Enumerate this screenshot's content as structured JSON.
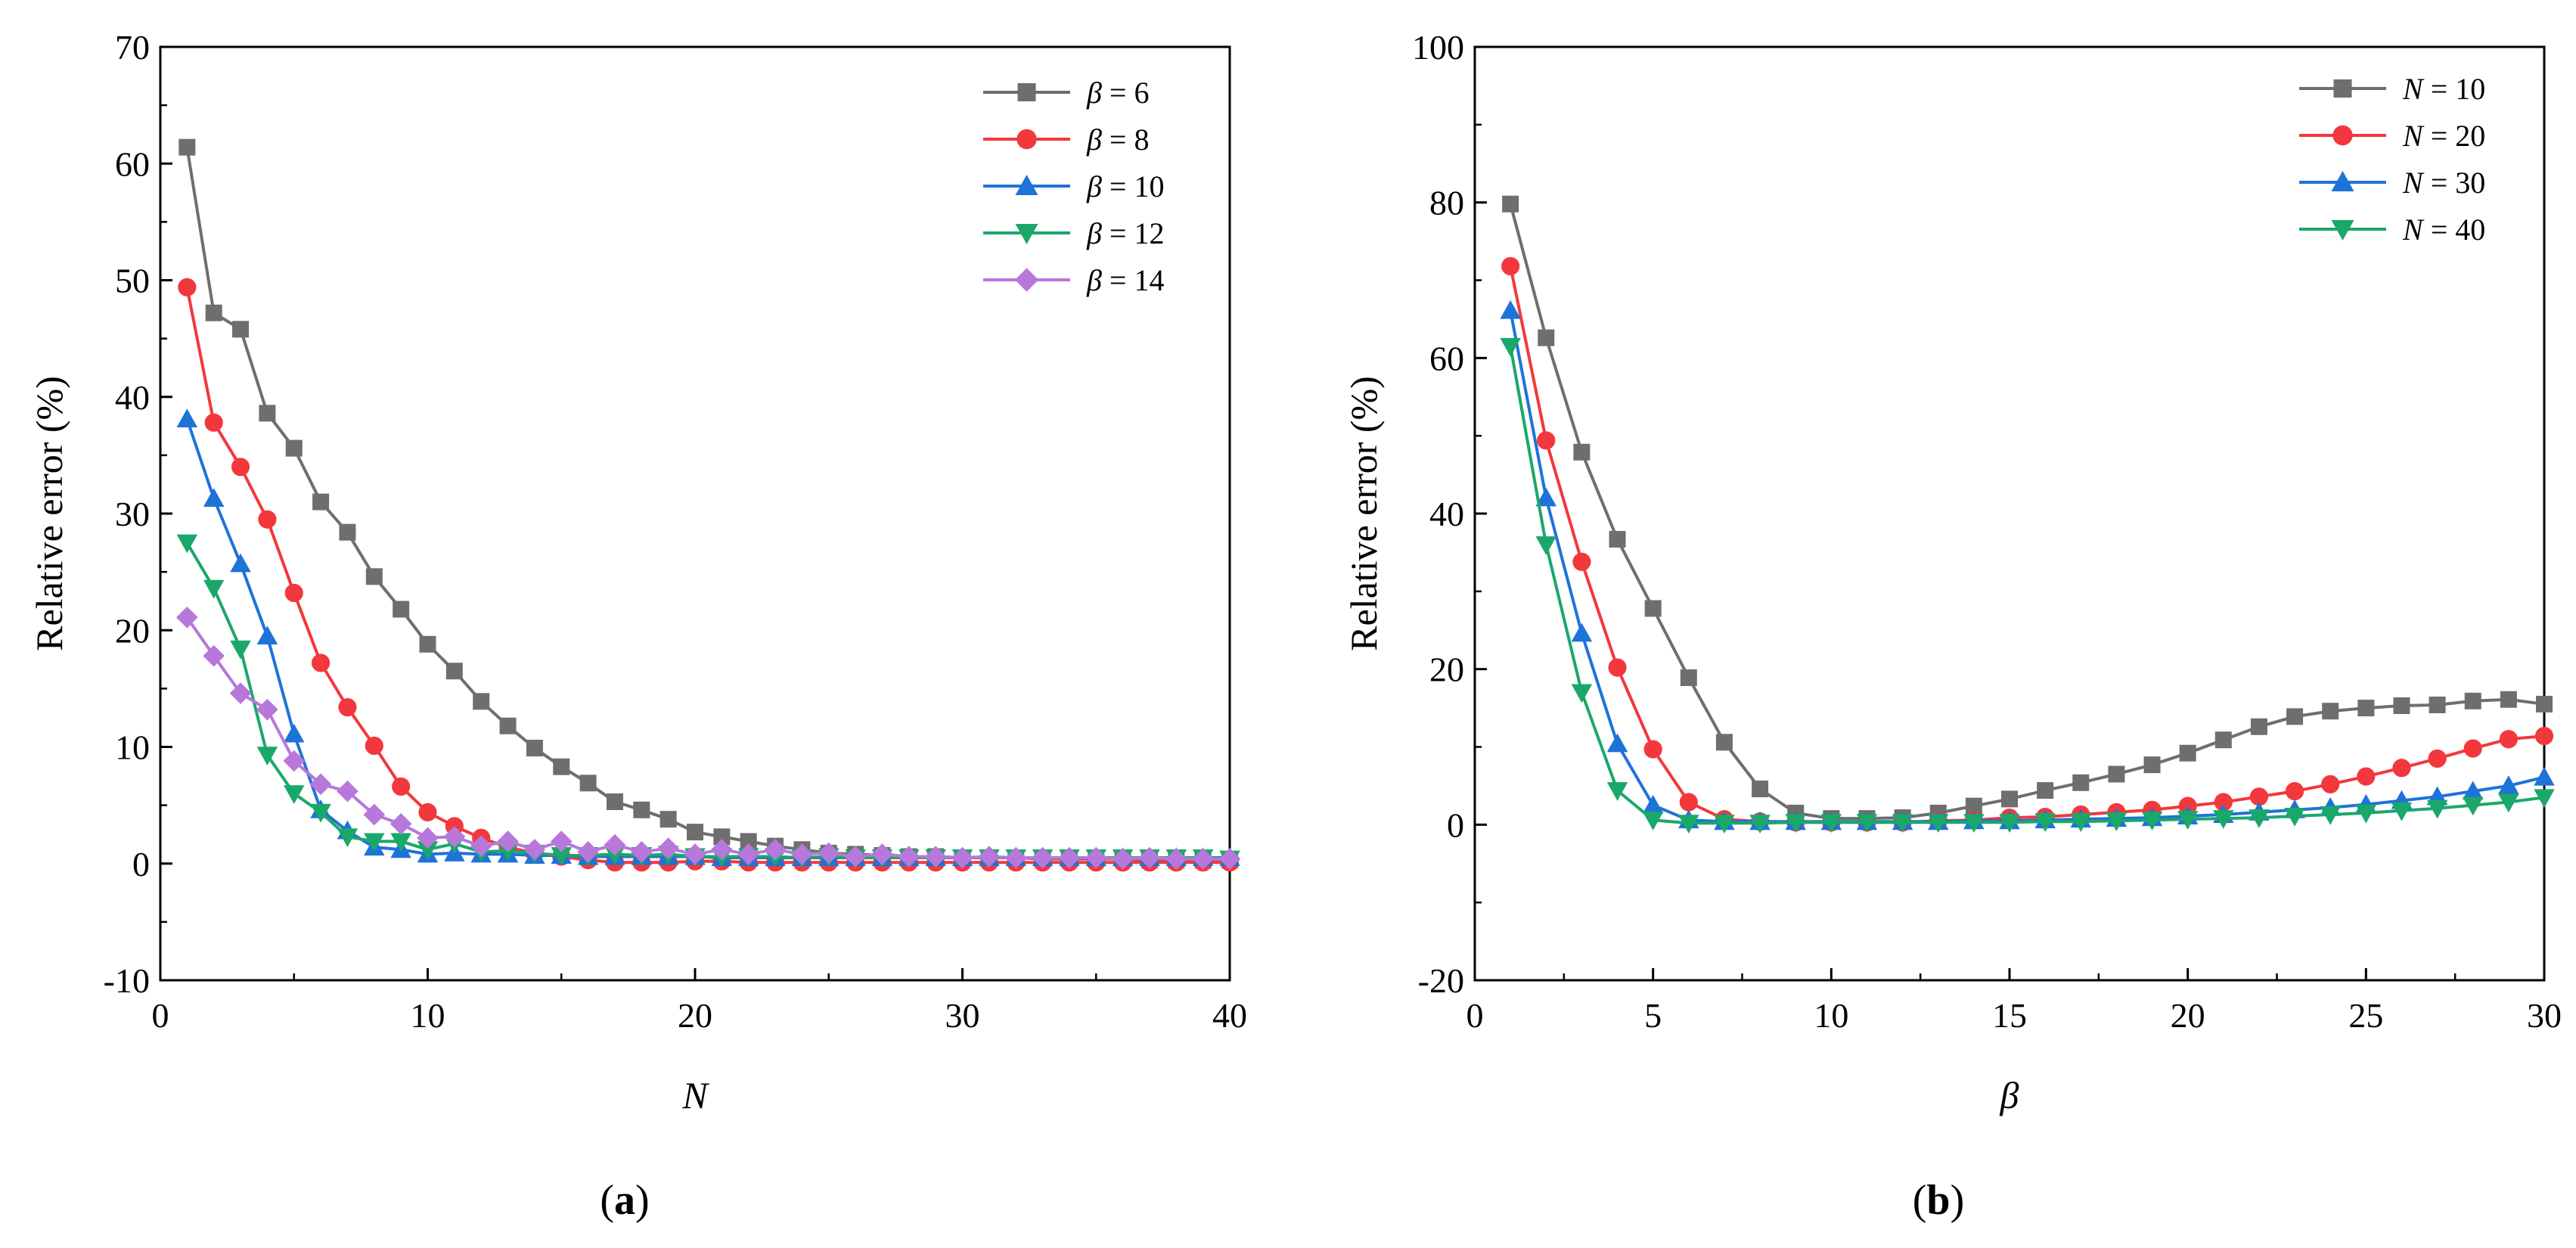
{
  "chart_data": [
    {
      "type": "line",
      "panel": "a",
      "label_open": "(",
      "label_letter": "a",
      "label_close": ")",
      "xlabel": "N",
      "ylabel": "Relative error (%)",
      "xlim": [
        0,
        40
      ],
      "ylim": [
        -10,
        70
      ],
      "xticks": [
        0,
        10,
        20,
        30,
        40
      ],
      "yticks": [
        -10,
        0,
        10,
        20,
        30,
        40,
        50,
        60,
        70
      ],
      "x": [
        1,
        2,
        3,
        4,
        5,
        6,
        7,
        8,
        9,
        10,
        11,
        12,
        13,
        14,
        15,
        16,
        17,
        18,
        19,
        20,
        21,
        22,
        23,
        24,
        25,
        26,
        27,
        28,
        29,
        30,
        31,
        32,
        33,
        34,
        35,
        36,
        37,
        38,
        39,
        40
      ],
      "legend_position": "top-right",
      "series": [
        {
          "name": "β = 6",
          "var": "β",
          "eq": " = ",
          "num": "6",
          "marker": "square",
          "color": "#6e6e6e",
          "values": [
            61.4,
            47.2,
            45.8,
            38.6,
            35.6,
            31,
            28.4,
            24.6,
            21.8,
            18.8,
            16.5,
            13.9,
            11.8,
            9.9,
            8.3,
            6.9,
            5.3,
            4.6,
            3.8,
            2.7,
            2.3,
            1.9,
            1.5,
            1.2,
            0.9,
            0.8,
            0.7,
            0.6,
            0.6,
            0.5,
            0.5,
            0.5,
            0.4,
            0.4,
            0.4,
            0.4,
            0.3,
            0.3,
            0.3,
            0.3
          ]
        },
        {
          "name": "β = 8",
          "var": "β",
          "eq": " = ",
          "num": "8",
          "marker": "circle",
          "color": "#f2383c",
          "values": [
            49.4,
            37.8,
            34,
            29.5,
            23.2,
            17.2,
            13.4,
            10.1,
            6.6,
            4.4,
            3.2,
            2.2,
            1.4,
            0.9,
            0.6,
            0.3,
            0.1,
            0.1,
            0.1,
            0.2,
            0.2,
            0.1,
            0.1,
            0.1,
            0.1,
            0.1,
            0.1,
            0.1,
            0.1,
            0.1,
            0.1,
            0.1,
            0.1,
            0.1,
            0.1,
            0.1,
            0.1,
            0.1,
            0.1,
            0.1
          ]
        },
        {
          "name": "β = 10",
          "var": "β",
          "eq": " = ",
          "num": "10",
          "marker": "triangle-up",
          "color": "#1e73d8",
          "values": [
            38.1,
            31.3,
            25.7,
            19.5,
            11.1,
            4.6,
            2.8,
            1.4,
            1.2,
            0.8,
            0.9,
            0.8,
            0.8,
            0.7,
            0.7,
            0.6,
            0.6,
            0.6,
            0.6,
            0.6,
            0.5,
            0.5,
            0.5,
            0.5,
            0.5,
            0.5,
            0.5,
            0.5,
            0.5,
            0.5,
            0.5,
            0.5,
            0.5,
            0.5,
            0.5,
            0.5,
            0.5,
            0.5,
            0.5,
            0.5
          ]
        },
        {
          "name": "β = 12",
          "var": "β",
          "eq": " = ",
          "num": "12",
          "marker": "triangle-down",
          "color": "#1aa86a",
          "values": [
            27.5,
            23.6,
            18.4,
            9.3,
            6.0,
            4.4,
            2.3,
            1.9,
            1.9,
            1.2,
            1.7,
            1.0,
            1.1,
            0.9,
            0.7,
            0.7,
            0.8,
            0.7,
            0.8,
            0.6,
            0.6,
            0.6,
            0.6,
            0.5,
            0.6,
            0.5,
            0.5,
            0.5,
            0.5,
            0.5,
            0.5,
            0.5,
            0.5,
            0.5,
            0.5,
            0.5,
            0.5,
            0.5,
            0.5,
            0.4
          ]
        },
        {
          "name": "β = 14",
          "var": "β",
          "eq": " = ",
          "num": "14",
          "marker": "diamond",
          "color": "#b777db",
          "values": [
            21.1,
            17.8,
            14.6,
            13.2,
            8.8,
            6.8,
            6.2,
            4.2,
            3.4,
            2.2,
            2.3,
            1.5,
            1.9,
            1.2,
            1.9,
            1.0,
            1.6,
            1.0,
            1.3,
            0.8,
            1.2,
            0.8,
            1.2,
            0.8,
            0.9,
            0.6,
            0.8,
            0.6,
            0.6,
            0.5,
            0.6,
            0.5,
            0.5,
            0.5,
            0.5,
            0.4,
            0.5,
            0.4,
            0.4,
            0.4
          ]
        }
      ]
    },
    {
      "type": "line",
      "panel": "b",
      "label_open": "(",
      "label_letter": "b",
      "label_close": ")",
      "xlabel": "β",
      "ylabel": "Relative error (%)",
      "xlim": [
        0,
        30
      ],
      "ylim": [
        -20,
        100
      ],
      "xticks": [
        0,
        5,
        10,
        15,
        20,
        25,
        30
      ],
      "yticks": [
        -20,
        0,
        20,
        40,
        60,
        80,
        100
      ],
      "x": [
        1,
        2,
        3,
        4,
        5,
        6,
        7,
        8,
        9,
        10,
        11,
        12,
        13,
        14,
        15,
        16,
        17,
        18,
        19,
        20,
        21,
        22,
        23,
        24,
        25,
        26,
        27,
        28,
        29,
        30
      ],
      "legend_position": "top-right",
      "series": [
        {
          "name": "N = 10",
          "var": "N",
          "eq": " = ",
          "num": "10",
          "marker": "square",
          "color": "#6e6e6e",
          "values": [
            79.8,
            62.6,
            47.9,
            36.7,
            27.8,
            18.9,
            10.6,
            4.6,
            1.5,
            0.8,
            0.8,
            0.9,
            1.5,
            2.4,
            3.3,
            4.4,
            5.4,
            6.5,
            7.7,
            9.2,
            10.9,
            12.6,
            13.9,
            14.6,
            15.0,
            15.3,
            15.4,
            15.9,
            16.1,
            15.5
          ]
        },
        {
          "name": "N = 20",
          "var": "N",
          "eq": " = ",
          "num": "20",
          "marker": "circle",
          "color": "#f2383c",
          "values": [
            71.8,
            49.4,
            33.8,
            20.2,
            9.7,
            2.9,
            0.7,
            0.4,
            0.3,
            0.3,
            0.3,
            0.3,
            0.5,
            0.6,
            0.9,
            1.0,
            1.3,
            1.6,
            1.9,
            2.4,
            2.9,
            3.6,
            4.3,
            5.2,
            6.2,
            7.3,
            8.5,
            9.8,
            11.0,
            11.4
          ]
        },
        {
          "name": "N = 30",
          "var": "N",
          "eq": " = ",
          "num": "30",
          "marker": "triangle-up",
          "color": "#1e73d8",
          "values": [
            66.1,
            42.0,
            24.6,
            10.4,
            2.5,
            0.6,
            0.4,
            0.4,
            0.4,
            0.4,
            0.4,
            0.4,
            0.4,
            0.5,
            0.5,
            0.6,
            0.7,
            0.8,
            0.9,
            1.1,
            1.3,
            1.6,
            1.9,
            2.2,
            2.6,
            3.1,
            3.6,
            4.3,
            5.0,
            6.1
          ]
        },
        {
          "name": "N = 40",
          "var": "N",
          "eq": " = ",
          "num": "40",
          "marker": "triangle-down",
          "color": "#1aa86a",
          "values": [
            61.5,
            36.0,
            17.0,
            4.4,
            0.6,
            0.2,
            0.2,
            0.2,
            0.3,
            0.3,
            0.3,
            0.3,
            0.3,
            0.3,
            0.3,
            0.4,
            0.4,
            0.5,
            0.6,
            0.7,
            0.8,
            0.9,
            1.1,
            1.3,
            1.5,
            1.8,
            2.1,
            2.5,
            2.9,
            3.5
          ]
        }
      ]
    }
  ]
}
